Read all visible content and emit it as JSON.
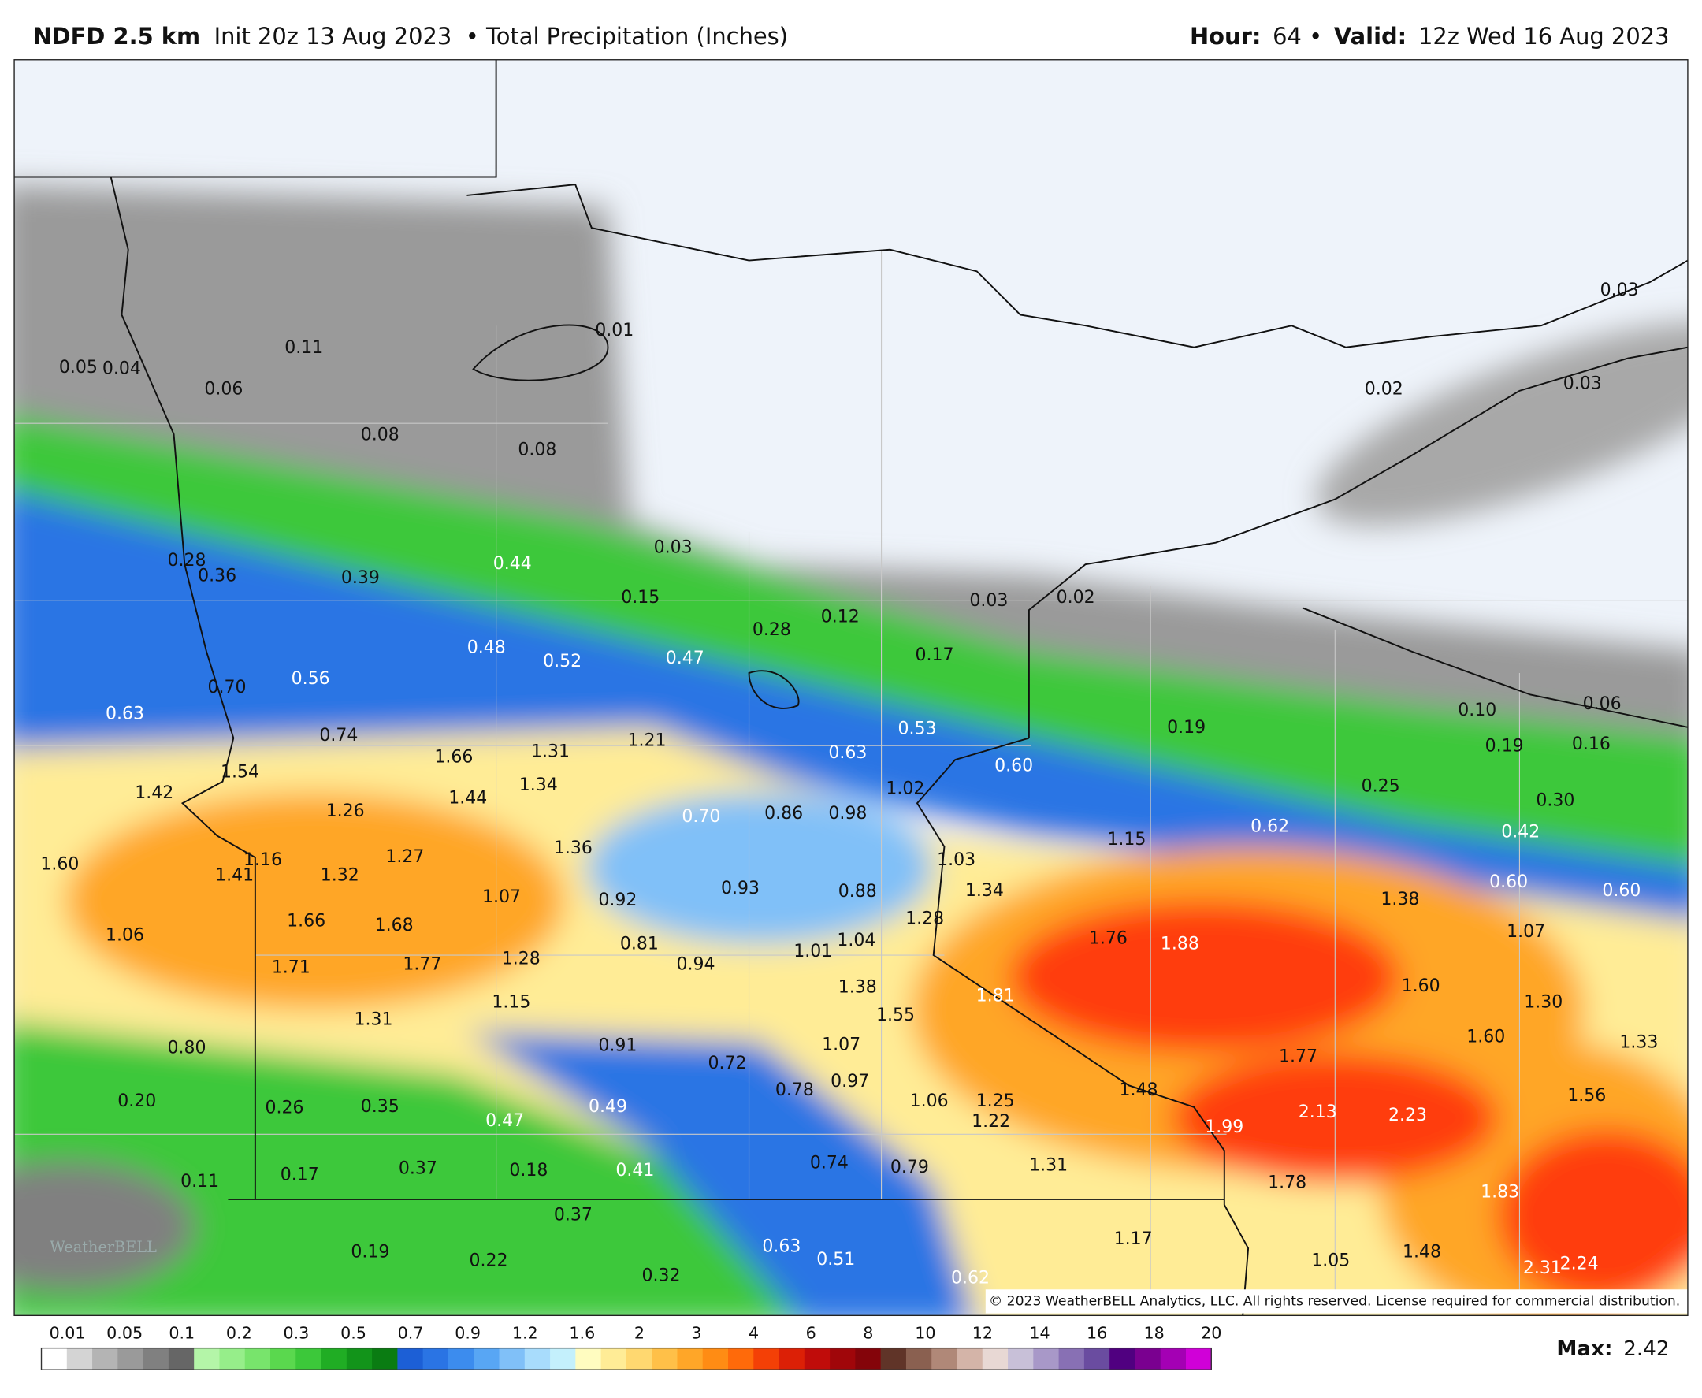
{
  "header": {
    "model": "NDFD 2.5 km",
    "init": "Init 20z 13 Aug 2023",
    "product": "• Total Precipitation (Inches)",
    "hour_label": "Hour:",
    "hour": "64 •",
    "valid_label": "Valid:",
    "valid": "12z Wed 16 Aug 2023"
  },
  "map_labels": [
    "0.01",
    "0.05",
    "0.04",
    "0.11",
    "0.06",
    "0.08",
    "0.08",
    "0.03",
    "0.02",
    "0.03",
    "0.03",
    "0.28",
    "0.36",
    "0.39",
    "0.44",
    "0.15",
    "0.03",
    "0.02",
    "0.28",
    "0.12",
    "0.17",
    "0.48",
    "0.52",
    "0.47",
    "0.56",
    "0.70",
    "0.63",
    "0.53",
    "0.19",
    "0.10",
    "0.06",
    "0.19",
    "0.16",
    "0.74",
    "1.66",
    "1.31",
    "1.21",
    "0.63",
    "0.60",
    "0.25",
    "0.30",
    "1.54",
    "1.42",
    "1.34",
    "1.44",
    "1.02",
    "1.26",
    "0.70",
    "0.86",
    "0.98",
    "0.62",
    "0.42",
    "1.60",
    "1.16",
    "1.27",
    "1.36",
    "1.03",
    "1.15",
    "1.41",
    "1.32",
    "1.07",
    "0.92",
    "0.93",
    "0.88",
    "1.34",
    "1.38",
    "0.60",
    "0.60",
    "1.28",
    "1.66",
    "1.68",
    "1.06",
    "1.07",
    "0.81",
    "1.04",
    "1.76",
    "1.88",
    "1.01",
    "1.71",
    "1.77",
    "1.28",
    "0.94",
    "1.38",
    "1.60",
    "1.81",
    "1.15",
    "1.55",
    "1.30",
    "1.31",
    "0.80",
    "0.91",
    "1.07",
    "1.60",
    "1.33",
    "0.72",
    "1.77",
    "0.97",
    "0.78",
    "1.48",
    "1.56",
    "0.20",
    "0.26",
    "0.35",
    "0.49",
    "1.06",
    "1.25",
    "1.22",
    "2.13",
    "2.23",
    "0.47",
    "1.99",
    "0.37",
    "0.18",
    "0.41",
    "0.74",
    "0.79",
    "1.31",
    "0.17",
    "0.11",
    "1.78",
    "1.83",
    "0.37",
    "1.17",
    "0.63",
    "0.19",
    "0.51",
    "0.22",
    "1.48",
    "1.05",
    "2.24",
    "2.31",
    "0.32",
    "0.62"
  ],
  "watermark": "WeatherBELL",
  "copyright": "© 2023 WeatherBELL Analytics, LLC. All rights reserved. License required for commercial distribution.",
  "legend": {
    "ticks": [
      "0.01",
      "0.05",
      "0.1",
      "0.2",
      "0.3",
      "0.5",
      "0.7",
      "0.9",
      "1.2",
      "1.6",
      "2",
      "3",
      "4",
      "6",
      "8",
      "10",
      "12",
      "14",
      "16",
      "18",
      "20"
    ],
    "colors": [
      "#ffffff",
      "#d4d4d4",
      "#b4b4b4",
      "#9a9a9a",
      "#808080",
      "#666666",
      "#b4f5a8",
      "#96ee8a",
      "#78e46c",
      "#5ad84e",
      "#3cc83a",
      "#20ad24",
      "#12941a",
      "#0a7c12",
      "#1c5fd6",
      "#2a74e4",
      "#3c8cee",
      "#58a6f4",
      "#80c0f8",
      "#a8dcfc",
      "#c4f0fc",
      "#fffcc0",
      "#ffec96",
      "#ffd870",
      "#ffc048",
      "#ffa628",
      "#ff8c14",
      "#ff6a0a",
      "#f44006",
      "#dc2006",
      "#c00c0a",
      "#a0060a",
      "#84040a",
      "#603428",
      "#8a6050",
      "#b08878",
      "#d4b4a8",
      "#e8d8d4",
      "#c8c0d8",
      "#a898c8",
      "#8870b4",
      "#6a4ca0",
      "#500080",
      "#7a0090",
      "#a400b4",
      "#d000d8"
    ]
  },
  "max": {
    "label": "Max:",
    "value": "2.42"
  }
}
